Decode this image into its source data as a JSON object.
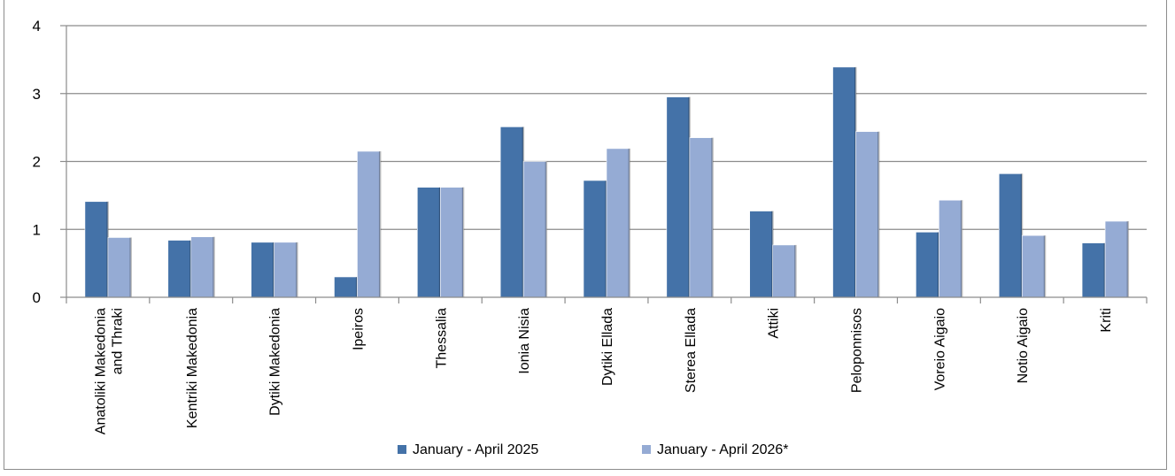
{
  "chart_data": {
    "type": "bar",
    "categories": [
      [
        "Anatoliki Makedonia",
        "and Thraki"
      ],
      [
        "Kentriki Makedonia"
      ],
      [
        "Dytiki Makedonia"
      ],
      [
        "Ipeiros"
      ],
      [
        "Thessalia"
      ],
      [
        "Ionia Nisia"
      ],
      [
        "Dytiki Ellada"
      ],
      [
        "Sterea Ellada"
      ],
      [
        "Attiki"
      ],
      [
        "Peloponnisos"
      ],
      [
        "Voreio Aigaio"
      ],
      [
        "Notio Aigaio"
      ],
      [
        "Kriti"
      ]
    ],
    "series": [
      {
        "name": "January - April 2025",
        "color": "#4472a8",
        "values": [
          1.41,
          0.84,
          0.81,
          0.3,
          1.62,
          2.51,
          1.72,
          2.95,
          1.27,
          3.39,
          0.96,
          1.82,
          0.8
        ]
      },
      {
        "name": "January - April 2026*",
        "color": "#95abd4",
        "values": [
          0.88,
          0.89,
          0.81,
          2.15,
          1.62,
          2.0,
          2.19,
          2.35,
          0.77,
          2.44,
          1.43,
          0.91,
          1.12
        ]
      }
    ],
    "ylim": [
      0,
      4
    ],
    "yticks": [
      "0",
      "1",
      "2",
      "3",
      "4"
    ],
    "grid": true,
    "legend": "bottom"
  }
}
